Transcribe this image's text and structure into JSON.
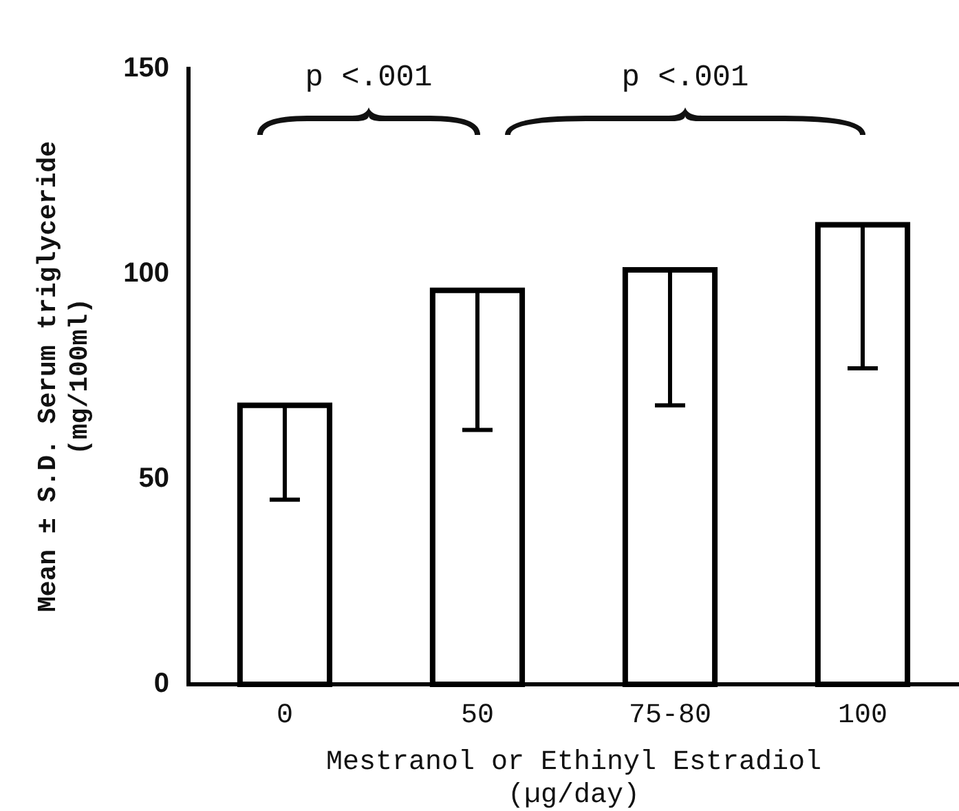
{
  "chart_data": {
    "type": "bar",
    "categories": [
      "0",
      "50",
      "75-80",
      "100"
    ],
    "values": [
      68,
      96,
      101,
      112
    ],
    "errors": [
      [
        45,
        68
      ],
      [
        62,
        96
      ],
      [
        68,
        101
      ],
      [
        77,
        112
      ]
    ],
    "color": "#000000",
    "xlabel": "Mestranol or Ethinyl Estradiol\n(µg/day)",
    "ylabel": "Mean ± S.D. Serum triglyceride\n(mg/100ml)",
    "ylim": [
      0,
      150
    ],
    "yticks": [
      0,
      50,
      100,
      150
    ],
    "annotations": [
      "p <.001",
      "p <.001"
    ],
    "grid": false,
    "legend": false
  }
}
